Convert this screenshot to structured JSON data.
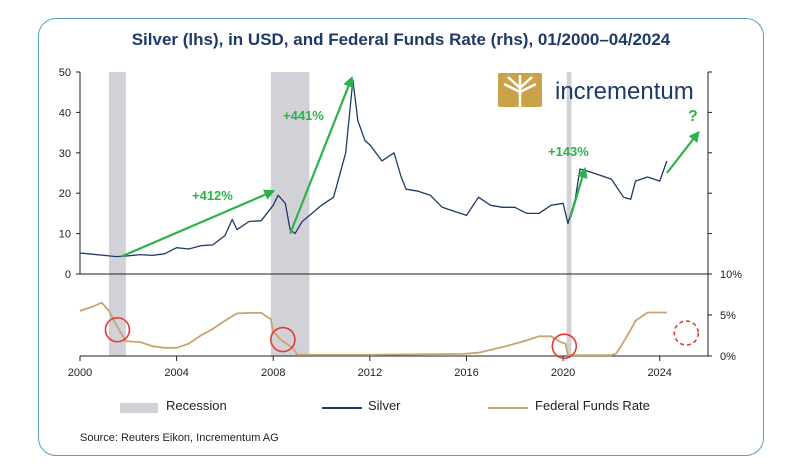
{
  "chart_data": [
    {
      "type": "line",
      "title": "Silver (lhs), in USD, and Federal Funds Rate (rhs), 01/2000–04/2024",
      "ylim": [
        0,
        50
      ],
      "yticks": [
        0,
        10,
        20,
        30,
        40,
        50
      ],
      "x": [
        2000.0,
        2000.5,
        2001.0,
        2001.5,
        2002.0,
        2002.5,
        2003.0,
        2003.5,
        2004.0,
        2004.5,
        2005.0,
        2005.5,
        2006.0,
        2006.3,
        2006.5,
        2007.0,
        2007.5,
        2008.0,
        2008.2,
        2008.5,
        2008.7,
        2008.9,
        2009.2,
        2009.5,
        2010.0,
        2010.5,
        2011.0,
        2011.3,
        2011.5,
        2011.8,
        2012.0,
        2012.5,
        2013.0,
        2013.3,
        2013.5,
        2014.0,
        2014.5,
        2015.0,
        2015.5,
        2016.0,
        2016.5,
        2017.0,
        2017.5,
        2018.0,
        2018.5,
        2019.0,
        2019.5,
        2020.0,
        2020.2,
        2020.5,
        2020.7,
        2021.0,
        2021.5,
        2022.0,
        2022.5,
        2022.8,
        2023.0,
        2023.5,
        2024.0,
        2024.3
      ],
      "series": [
        {
          "name": "Silver",
          "color": "#1f3a66",
          "values": [
            5.2,
            4.9,
            4.6,
            4.3,
            4.5,
            4.8,
            4.6,
            5.0,
            6.5,
            6.2,
            7.0,
            7.2,
            9.5,
            13.5,
            11.0,
            13.0,
            13.2,
            17.0,
            19.5,
            17.5,
            11.0,
            10.0,
            13.0,
            14.5,
            17.0,
            19.0,
            30.0,
            48.0,
            38.0,
            33.0,
            32.0,
            28.0,
            30.0,
            24.0,
            21.0,
            20.5,
            19.5,
            16.5,
            15.5,
            14.5,
            19.0,
            17.0,
            16.5,
            16.5,
            15.0,
            15.0,
            17.0,
            17.5,
            12.5,
            18.5,
            26.0,
            25.5,
            24.5,
            23.5,
            19.0,
            18.5,
            23.0,
            24.0,
            23.0,
            28.0
          ]
        }
      ],
      "annotations": [
        "+412%",
        "+441%",
        "+143%",
        "?"
      ]
    },
    {
      "type": "line",
      "ylim": [
        0,
        10
      ],
      "yticks": [
        "0%",
        "5%",
        "10%"
      ],
      "xticks": [
        "2000",
        "2004",
        "2008",
        "2012",
        "2016",
        "2020",
        "2024"
      ],
      "x": [
        2000.0,
        2000.5,
        2000.9,
        2001.2,
        2001.5,
        2001.9,
        2002.5,
        2003.0,
        2003.5,
        2004.0,
        2004.5,
        2005.0,
        2005.5,
        2006.0,
        2006.5,
        2007.0,
        2007.5,
        2007.9,
        2008.0,
        2008.3,
        2008.8,
        2009.0,
        2012.0,
        2015.9,
        2016.5,
        2017.0,
        2017.5,
        2018.0,
        2018.5,
        2019.0,
        2019.5,
        2019.9,
        2020.1,
        2020.2,
        2022.0,
        2022.2,
        2022.5,
        2022.8,
        2023.0,
        2023.5,
        2024.3
      ],
      "series": [
        {
          "name": "Federal Funds Rate",
          "color": "#c8a46e",
          "values": [
            5.5,
            6.0,
            6.5,
            5.5,
            3.8,
            1.8,
            1.7,
            1.2,
            1.0,
            1.0,
            1.5,
            2.5,
            3.3,
            4.3,
            5.2,
            5.25,
            5.25,
            4.5,
            3.0,
            2.0,
            1.0,
            0.15,
            0.15,
            0.25,
            0.4,
            0.75,
            1.1,
            1.5,
            1.9,
            2.4,
            2.4,
            1.7,
            1.5,
            0.1,
            0.1,
            0.3,
            1.7,
            3.2,
            4.3,
            5.3,
            5.3
          ]
        }
      ]
    }
  ],
  "recessions": [
    [
      2001.2,
      2001.9
    ],
    [
      2007.9,
      2009.5
    ],
    [
      2020.15,
      2020.35
    ]
  ],
  "logo_text": "incrementum",
  "legend": {
    "recession": "Recession",
    "silver": "Silver",
    "ffr": "Federal Funds Rate"
  },
  "source": "Source: Reuters Eikon, Incrementum AG",
  "colors": {
    "silver": "#1f3a66",
    "ffr": "#c8a46e",
    "recession": "#d3d1d8",
    "annotation": "#2db24a",
    "circle": "#e53935",
    "frame": "#5aa0c8"
  }
}
